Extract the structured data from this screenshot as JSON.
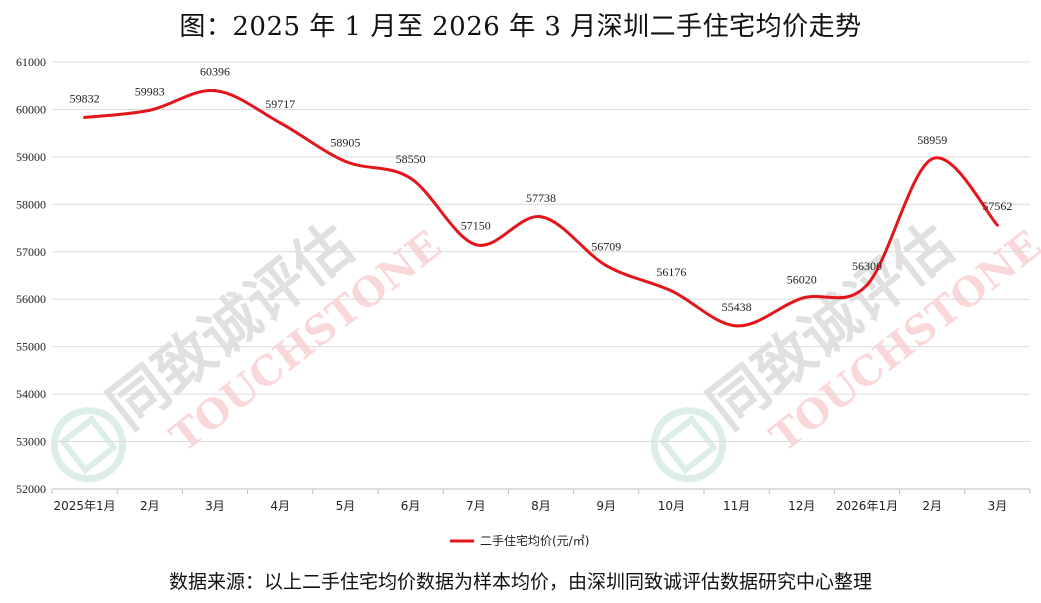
{
  "title": "图：2025 年 1 月至 2026 年 3 月深圳二手住宅均价走势",
  "source": "数据来源：以上二手住宅均价数据为样本均价，由深圳同致诚评估数据研究中心整理",
  "watermark": {
    "cn": "同致诚评估",
    "en": "TOUCHSTONE"
  },
  "colors": {
    "line": "#e3161b",
    "grid": "#dcdcdc",
    "axis": "#bfbfbf",
    "text": "#222222"
  },
  "chart_data": {
    "type": "line",
    "title": "图：2025 年 1 月至 2026 年 3 月深圳二手住宅均价走势",
    "xlabel": "",
    "ylabel": "",
    "ylim": [
      52000,
      61000
    ],
    "ytick_step": 1000,
    "grid": true,
    "legend_position": "bottom",
    "categories": [
      "2025年1月",
      "2月",
      "3月",
      "4月",
      "5月",
      "6月",
      "7月",
      "8月",
      "9月",
      "10月",
      "11月",
      "12月",
      "2026年1月",
      "2月",
      "3月"
    ],
    "series": [
      {
        "name": "二手住宅均价(元/㎡)",
        "values": [
          59832,
          59983,
          60396,
          59717,
          58905,
          58550,
          57150,
          57738,
          56709,
          56176,
          55438,
          56020,
          56300,
          58959,
          57562
        ]
      }
    ]
  }
}
